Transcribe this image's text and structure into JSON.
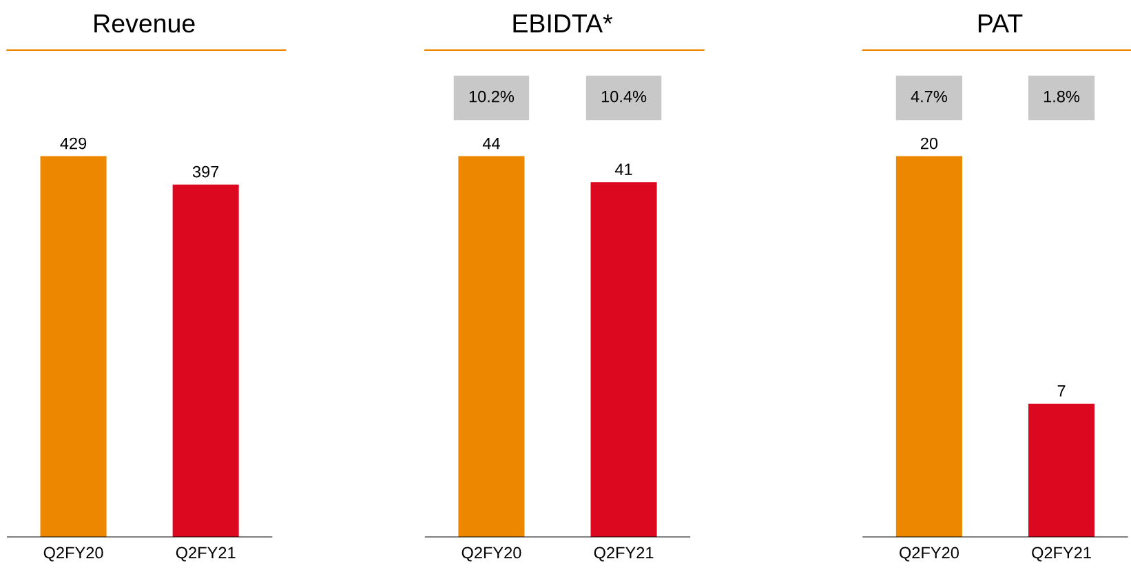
{
  "chart_data": [
    {
      "type": "bar",
      "title": "Revenue",
      "categories": [
        "Q2FY20",
        "Q2FY21"
      ],
      "values": [
        429,
        397
      ],
      "colors": [
        "#ee8700",
        "#dc0820"
      ],
      "data_labels": true
    },
    {
      "type": "bar",
      "title": "EBIDTA*",
      "categories": [
        "Q2FY20",
        "Q2FY21"
      ],
      "values": [
        44,
        41
      ],
      "colors": [
        "#ee8700",
        "#dc0820"
      ],
      "data_labels": true,
      "annotations": [
        "10.2%",
        "10.4%"
      ]
    },
    {
      "type": "bar",
      "title": "PAT",
      "categories": [
        "Q2FY20",
        "Q2FY21"
      ],
      "values": [
        20,
        7
      ],
      "colors": [
        "#ee8700",
        "#dc0820"
      ],
      "data_labels": true,
      "annotations": [
        "4.7%",
        "1.8%"
      ]
    }
  ]
}
